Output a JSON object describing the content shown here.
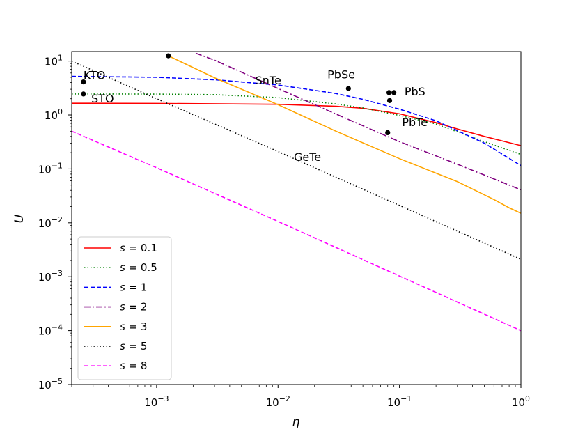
{
  "chart_data": {
    "type": "line",
    "xscale": "log",
    "yscale": "log",
    "xlim": [
      0.0002,
      1.0
    ],
    "ylim": [
      1e-05,
      15
    ],
    "xlabel": "η",
    "ylabel": "U",
    "grid": false,
    "legend_position": "lower-left",
    "x_ticks": [
      {
        "value": 0.001,
        "base": "10",
        "exp": "−3"
      },
      {
        "value": 0.01,
        "base": "10",
        "exp": "−2"
      },
      {
        "value": 0.1,
        "base": "10",
        "exp": "−1"
      },
      {
        "value": 1,
        "base": "10",
        "exp": "0"
      }
    ],
    "y_ticks": [
      {
        "value": 1e-05,
        "base": "10",
        "exp": "−5"
      },
      {
        "value": 0.0001,
        "base": "10",
        "exp": "−4"
      },
      {
        "value": 0.001,
        "base": "10",
        "exp": "−3"
      },
      {
        "value": 0.01,
        "base": "10",
        "exp": "−2"
      },
      {
        "value": 0.1,
        "base": "10",
        "exp": "−1"
      },
      {
        "value": 1,
        "base": "10",
        "exp": "0"
      },
      {
        "value": 10,
        "base": "10",
        "exp": "1"
      }
    ],
    "series": [
      {
        "name": "s = 0.1",
        "param": "0.1",
        "color": "#ff0000",
        "style": "solid",
        "x": [
          0.0002,
          0.001,
          0.01,
          0.03,
          0.05,
          0.1,
          0.2,
          0.3,
          0.5,
          1.0
        ],
        "y": [
          1.65,
          1.64,
          1.58,
          1.45,
          1.33,
          1.05,
          0.72,
          0.55,
          0.4,
          0.27
        ]
      },
      {
        "name": "s = 0.5",
        "param": "0.5",
        "color": "#008000",
        "style": "dotted",
        "x": [
          0.0002,
          0.001,
          0.003,
          0.01,
          0.03,
          0.05,
          0.1,
          0.2,
          0.5,
          1.0
        ],
        "y": [
          2.45,
          2.44,
          2.38,
          2.1,
          1.6,
          1.35,
          0.98,
          0.68,
          0.32,
          0.185
        ]
      },
      {
        "name": "s = 1",
        "param": "1",
        "color": "#0000ff",
        "style": "dashed",
        "x": [
          0.0002,
          0.001,
          0.003,
          0.01,
          0.03,
          0.05,
          0.1,
          0.2,
          0.5,
          1.0
        ],
        "y": [
          5.2,
          5.0,
          4.5,
          3.6,
          2.5,
          1.95,
          1.28,
          0.78,
          0.3,
          0.115
        ]
      },
      {
        "name": "s = 2",
        "param": "2",
        "color": "#800080",
        "style": "dashdot",
        "x": [
          0.0021,
          0.003,
          0.01,
          0.03,
          0.1,
          0.3,
          1.0
        ],
        "y": [
          14.0,
          10.4,
          3.1,
          1.04,
          0.32,
          0.122,
          0.041
        ]
      },
      {
        "name": "s = 3",
        "param": "3",
        "color": "#ffa500",
        "style": "solid",
        "x": [
          0.00125,
          0.003,
          0.01,
          0.03,
          0.1,
          0.3,
          0.6,
          0.8,
          1.0
        ],
        "y": [
          12.5,
          4.9,
          1.55,
          0.5,
          0.155,
          0.058,
          0.027,
          0.019,
          0.015
        ]
      },
      {
        "name": "s = 5",
        "param": "5",
        "color": "#000000",
        "style": "dotted",
        "x": [
          0.0002,
          0.0005,
          0.001,
          0.01,
          0.1,
          1.0
        ],
        "y": [
          10.0,
          4.0,
          2.0,
          0.21,
          0.021,
          0.0021
        ]
      },
      {
        "name": "s = 8",
        "param": "8",
        "color": "#ff00ff",
        "style": "dashed",
        "x": [
          0.0002,
          0.001,
          0.01,
          0.1,
          1.0
        ],
        "y": [
          0.5,
          0.105,
          0.0106,
          0.00103,
          0.0001
        ]
      }
    ],
    "points": [
      {
        "label": "KTO",
        "x": 0.00025,
        "y": 4.1
      },
      {
        "label": "STO",
        "x": 0.00025,
        "y": 2.45
      },
      {
        "label": "",
        "x": 0.00125,
        "y": 12.5
      },
      {
        "label": "PbSe",
        "x": 0.038,
        "y": 3.1
      },
      {
        "label": "PbS",
        "x": 0.082,
        "y": 2.6
      },
      {
        "label": "",
        "x": 0.09,
        "y": 2.6
      },
      {
        "label": "",
        "x": 0.083,
        "y": 1.85
      },
      {
        "label": "PbTe",
        "x": 0.08,
        "y": 0.47
      }
    ],
    "annotations": [
      {
        "text": "KTO",
        "x": 0.00025,
        "y": 4.6
      },
      {
        "text": "STO",
        "x": 0.00029,
        "y": 1.7
      },
      {
        "text": "SnTe",
        "x": 0.0065,
        "y": 3.7
      },
      {
        "text": "PbSe",
        "x": 0.0255,
        "y": 4.8
      },
      {
        "text": "PbS",
        "x": 0.11,
        "y": 2.3
      },
      {
        "text": "PbTe",
        "x": 0.105,
        "y": 0.62
      },
      {
        "text": "GeTe",
        "x": 0.0135,
        "y": 0.14
      }
    ]
  }
}
